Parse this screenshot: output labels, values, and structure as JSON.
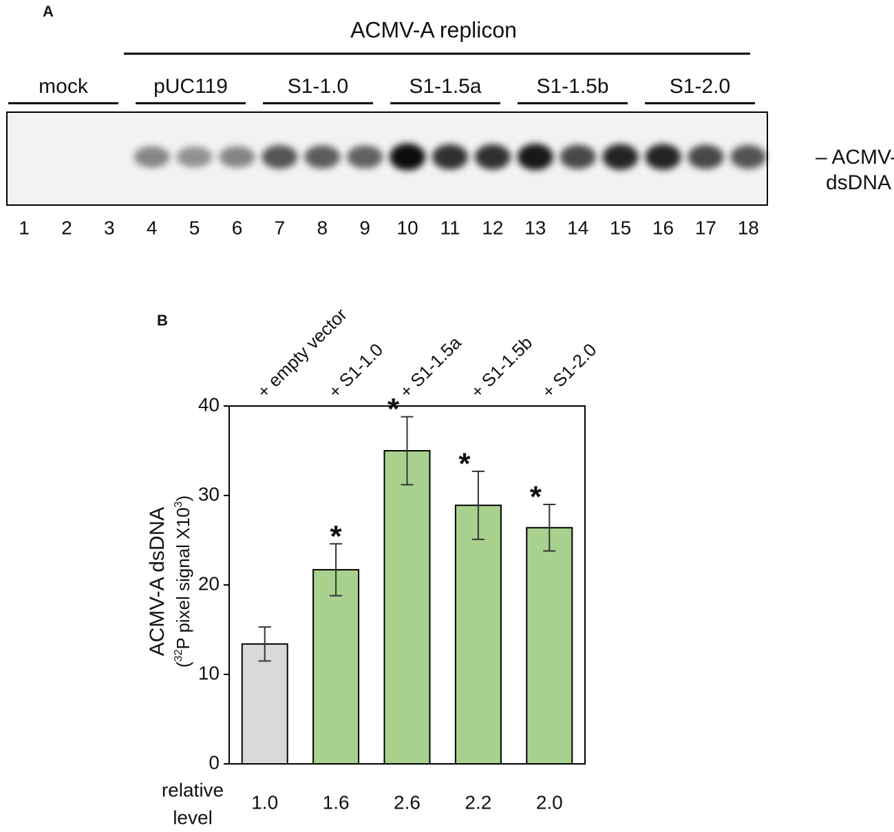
{
  "panel_a": {
    "label": "A",
    "replicon_label": "ACMV-A replicon",
    "groups": [
      "mock",
      "pUC119",
      "S1-1.0",
      "S1-1.5a",
      "S1-1.5b",
      "S1-2.0"
    ],
    "lanes": [
      "1",
      "2",
      "3",
      "4",
      "5",
      "6",
      "7",
      "8",
      "9",
      "10",
      "11",
      "12",
      "13",
      "14",
      "15",
      "16",
      "17",
      "18"
    ],
    "band_label": [
      "– ACMV-A",
      "dsDNA"
    ]
  },
  "chart_data": {
    "type": "bar",
    "panel_label": "B",
    "categories": [
      "+ empty vector",
      "+ S1-1.0",
      "+ S1-1.5a",
      "+ S1-1.5b",
      "+ S1-2.0"
    ],
    "values": [
      13.4,
      21.7,
      35.0,
      28.9,
      26.4
    ],
    "errors": [
      1.9,
      2.9,
      3.8,
      3.8,
      2.6
    ],
    "colors": [
      "#d9d9d9",
      "#a9d18e",
      "#a9d18e",
      "#a9d18e",
      "#a9d18e"
    ],
    "annotations": [
      null,
      "*",
      "*",
      "*",
      "*"
    ],
    "ylabel": "ACMV-A dsDNA",
    "ylabel_parts": [
      "(",
      "32",
      "P pixel signal X10",
      "3",
      ")"
    ],
    "ylim": [
      0,
      40
    ],
    "yticks": [
      0,
      10,
      20,
      30,
      40
    ],
    "row_label": [
      "relative",
      "level"
    ],
    "relative_levels": [
      "1.0",
      "1.6",
      "2.6",
      "2.2",
      "2.0"
    ]
  }
}
